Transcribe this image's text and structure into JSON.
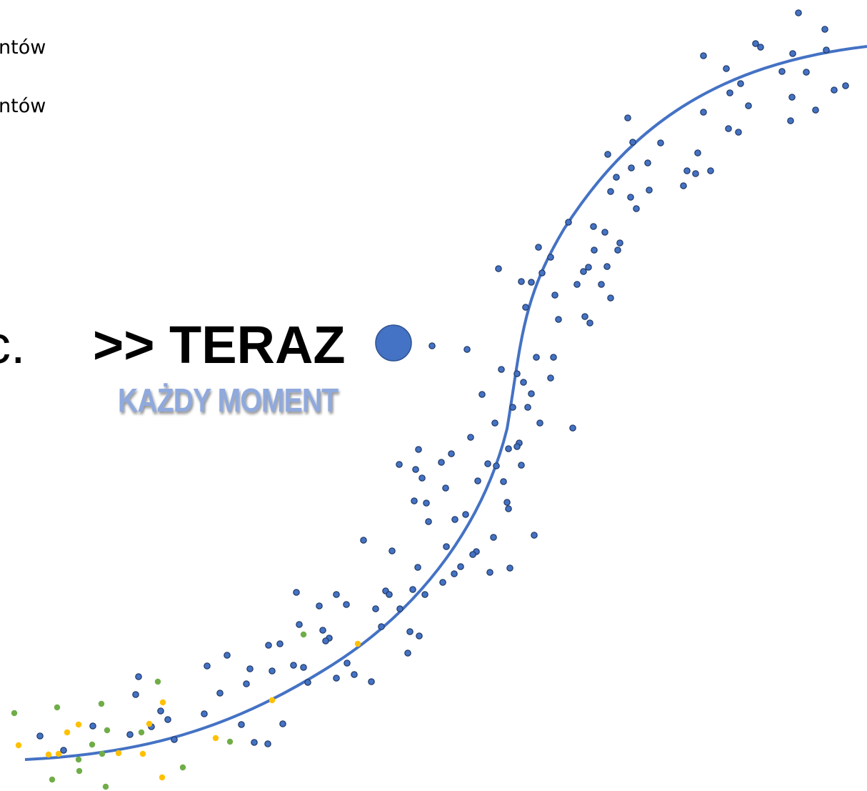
{
  "text_lines": [
    "ntów",
    "ntów"
  ],
  "headline": {
    "prefix": "c.",
    "main": ">> TERAZ"
  },
  "subtitle": "KAŻDY MOMENT"
}
